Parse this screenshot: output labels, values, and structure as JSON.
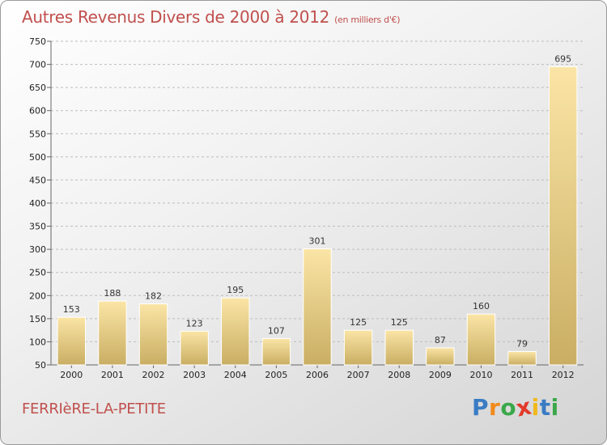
{
  "chart_data": {
    "type": "bar",
    "title": "Autres Revenus Divers de 2000 à 2012",
    "subtitle": "(en milliers d'€)",
    "categories": [
      "2000",
      "2001",
      "2002",
      "2003",
      "2004",
      "2005",
      "2006",
      "2007",
      "2008",
      "2009",
      "2010",
      "2011",
      "2012"
    ],
    "values": [
      153,
      188,
      182,
      123,
      195,
      107,
      301,
      125,
      125,
      87,
      160,
      79,
      695
    ],
    "ylim": [
      50,
      750
    ],
    "yticks": [
      50,
      100,
      150,
      200,
      250,
      300,
      350,
      400,
      450,
      500,
      550,
      600,
      650,
      700,
      750
    ],
    "grid": true,
    "bar_color_top": "#fbe5a6",
    "bar_color_bottom": "#c9ae63"
  },
  "commune": "FERRIèRE-LA-PETITE",
  "logo": {
    "letters": [
      "P",
      "r",
      "o",
      "x",
      "i",
      "t",
      "i"
    ],
    "colors": [
      "#3a7cc4",
      "#f08a1c",
      "#3aa84a",
      "#e23a2a",
      "#f0b81c",
      "#3a7cc4",
      "#3aa84a"
    ]
  }
}
